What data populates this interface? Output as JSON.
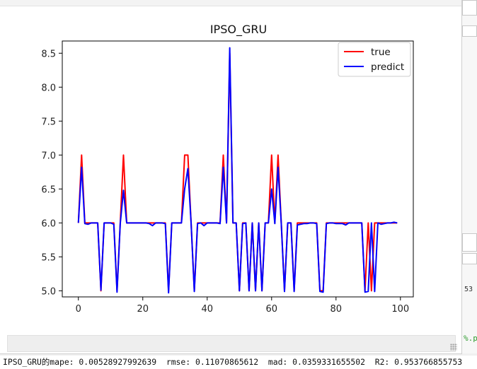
{
  "console_line": "IPSO_GRU的mape: 0.00528927992639  rmse: 0.11070865612  mad: 0.0359331655502  R2: 0.953766855753",
  "side_panel": {
    "clipped_number": "53",
    "clipped_code": "%.p"
  },
  "chart_data": {
    "type": "line",
    "title": "IPSO_GRU",
    "xlim": [
      -5,
      104
    ],
    "ylim": [
      4.91,
      8.68
    ],
    "xticks": [
      0,
      20,
      40,
      60,
      80,
      100
    ],
    "yticks": [
      5.0,
      5.5,
      6.0,
      6.5,
      7.0,
      7.5,
      8.0,
      8.5
    ],
    "grid": false,
    "legend_position": "top-right",
    "x": [
      0,
      1,
      2,
      3,
      4,
      5,
      6,
      7,
      8,
      9,
      10,
      11,
      12,
      13,
      14,
      15,
      16,
      17,
      18,
      19,
      20,
      21,
      22,
      23,
      24,
      25,
      26,
      27,
      28,
      29,
      30,
      31,
      32,
      33,
      34,
      35,
      36,
      37,
      38,
      39,
      40,
      41,
      42,
      43,
      44,
      45,
      46,
      47,
      48,
      49,
      50,
      51,
      52,
      53,
      54,
      55,
      56,
      57,
      58,
      59,
      60,
      61,
      62,
      63,
      64,
      65,
      66,
      67,
      68,
      69,
      70,
      71,
      72,
      73,
      74,
      75,
      76,
      77,
      78,
      79,
      80,
      81,
      82,
      83,
      84,
      85,
      86,
      87,
      88,
      89,
      90,
      91,
      92,
      93,
      94,
      95,
      96,
      97,
      98,
      99
    ],
    "series": [
      {
        "name": "true",
        "color": "#ff0000",
        "values": [
          6,
          7,
          6,
          6,
          6,
          6,
          6,
          5,
          6,
          6,
          6,
          6,
          5,
          6,
          7,
          6,
          6,
          6,
          6,
          6,
          6,
          6,
          6,
          6,
          6,
          6,
          6,
          6,
          5,
          6,
          6,
          6,
          6,
          7,
          7,
          6,
          5,
          6,
          6,
          6,
          6,
          6,
          6,
          6,
          6,
          7,
          6,
          8.5,
          6,
          6,
          5,
          6,
          6,
          5,
          6,
          5,
          6,
          5,
          6,
          6,
          7,
          6,
          7,
          6,
          5,
          6,
          6,
          5,
          6,
          6,
          6,
          6,
          6,
          6,
          6,
          5,
          5,
          6,
          6,
          6,
          6,
          6,
          6,
          6,
          6,
          6,
          6,
          6,
          6,
          5,
          6,
          5,
          6,
          6,
          6,
          6,
          6,
          6,
          6,
          6
        ]
      },
      {
        "name": "predict",
        "color": "#0000ff",
        "values": [
          6.0,
          6.82,
          5.99,
          5.98,
          6.0,
          6.0,
          6.0,
          5.01,
          6.0,
          6.0,
          6.0,
          5.98,
          4.98,
          5.99,
          6.48,
          6.0,
          6.0,
          6.0,
          6.0,
          6.0,
          6.0,
          6.0,
          5.99,
          5.96,
          6.0,
          6.0,
          6.0,
          5.99,
          4.97,
          6.0,
          6.0,
          6.0,
          6.0,
          6.5,
          6.8,
          6.0,
          4.99,
          5.99,
          6.0,
          5.96,
          6.0,
          6.0,
          6.0,
          6.0,
          5.99,
          6.82,
          6.0,
          8.58,
          6.0,
          6.0,
          5.0,
          5.99,
          6.0,
          5.0,
          6.0,
          5.0,
          6.0,
          5.0,
          6.0,
          6.0,
          6.5,
          5.99,
          6.82,
          5.99,
          4.99,
          6.0,
          6.0,
          4.99,
          5.97,
          5.98,
          5.99,
          5.99,
          6.0,
          6.0,
          5.99,
          4.99,
          4.98,
          5.99,
          6.0,
          6.0,
          5.99,
          5.99,
          5.99,
          5.97,
          6.0,
          6.0,
          6.0,
          6.0,
          6.0,
          4.98,
          4.99,
          6.0,
          4.99,
          6.0,
          5.98,
          5.99,
          6.0,
          6.0,
          6.01,
          6.0
        ]
      }
    ]
  }
}
